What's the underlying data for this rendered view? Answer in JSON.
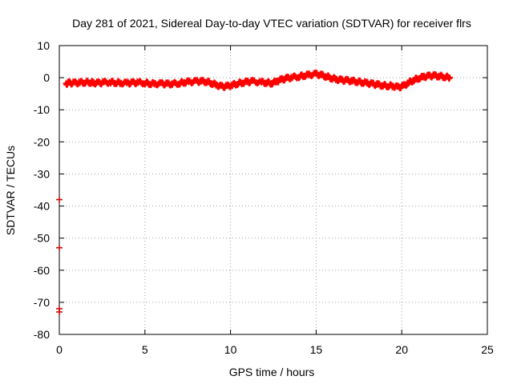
{
  "chart_data": {
    "type": "scatter",
    "title": "Day 281 of 2021, Sidereal Day-to-day VTEC variation (SDTVAR) for receiver flrs",
    "xlabel": "GPS time / hours",
    "ylabel": "SDTVAR / TECUs",
    "xlim": [
      0,
      25
    ],
    "ylim": [
      -80,
      10
    ],
    "xticks": [
      0,
      5,
      10,
      15,
      20,
      25
    ],
    "yticks": [
      10,
      0,
      -10,
      -20,
      -30,
      -40,
      -50,
      -60,
      -70,
      -80
    ],
    "grid": true,
    "marker": "plus",
    "colors": {
      "series": "#ff0000",
      "outliers": "#cc0000",
      "grid": "#a0a0a0",
      "frame": "#000000"
    },
    "series": [
      {
        "name": "SDTVAR",
        "points": [
          [
            0.4,
            -1.8
          ],
          [
            0.6,
            -1.6
          ],
          [
            0.9,
            -1.7
          ],
          [
            1.2,
            -1.5
          ],
          [
            1.5,
            -1.4
          ],
          [
            1.8,
            -1.4
          ],
          [
            2.0,
            -1.6
          ],
          [
            2.3,
            -1.7
          ],
          [
            2.6,
            -1.5
          ],
          [
            3.0,
            -1.4
          ],
          [
            3.3,
            -1.5
          ],
          [
            3.6,
            -1.6
          ],
          [
            4.0,
            -1.7
          ],
          [
            4.3,
            -1.6
          ],
          [
            4.6,
            -1.5
          ],
          [
            5.0,
            -1.6
          ],
          [
            5.3,
            -1.8
          ],
          [
            5.6,
            -1.9
          ],
          [
            6.0,
            -1.9
          ],
          [
            6.3,
            -2.0
          ],
          [
            6.6,
            -1.9
          ],
          [
            7.0,
            -1.7
          ],
          [
            7.3,
            -1.4
          ],
          [
            7.6,
            -1.3
          ],
          [
            8.0,
            -1.2
          ],
          [
            8.3,
            -1.1
          ],
          [
            8.6,
            -1.2
          ],
          [
            8.9,
            -1.7
          ],
          [
            9.2,
            -2.3
          ],
          [
            9.5,
            -2.8
          ],
          [
            9.8,
            -2.7
          ],
          [
            10.1,
            -2.3
          ],
          [
            10.4,
            -1.8
          ],
          [
            10.7,
            -1.5
          ],
          [
            11.0,
            -1.3
          ],
          [
            11.3,
            -1.2
          ],
          [
            11.8,
            -1.4
          ],
          [
            12.1,
            -1.5
          ],
          [
            12.4,
            -1.7
          ],
          [
            12.7,
            -1.1
          ],
          [
            13.0,
            -0.6
          ],
          [
            13.3,
            -0.2
          ],
          [
            13.6,
            0.1
          ],
          [
            14.0,
            0.4
          ],
          [
            14.3,
            0.7
          ],
          [
            14.6,
            0.9
          ],
          [
            15.0,
            1.1
          ],
          [
            15.3,
            0.8
          ],
          [
            15.6,
            0.4
          ],
          [
            15.9,
            -0.1
          ],
          [
            16.2,
            -0.5
          ],
          [
            16.5,
            -0.8
          ],
          [
            16.8,
            -0.9
          ],
          [
            17.1,
            -1.0
          ],
          [
            17.4,
            -1.2
          ],
          [
            17.7,
            -1.4
          ],
          [
            18.0,
            -1.7
          ],
          [
            18.3,
            -2.0
          ],
          [
            18.6,
            -2.2
          ],
          [
            18.9,
            -2.4
          ],
          [
            19.2,
            -2.5
          ],
          [
            19.5,
            -2.6
          ],
          [
            19.8,
            -3.0
          ],
          [
            20.1,
            -2.6
          ],
          [
            20.4,
            -1.6
          ],
          [
            20.7,
            -0.7
          ],
          [
            21.0,
            -0.1
          ],
          [
            21.3,
            0.3
          ],
          [
            21.6,
            0.5
          ],
          [
            21.9,
            0.6
          ],
          [
            22.2,
            0.5
          ],
          [
            22.5,
            0.3
          ],
          [
            22.8,
            0.0
          ]
        ]
      },
      {
        "name": "Outliers",
        "points": [
          [
            0.0,
            -38.0
          ],
          [
            0.0,
            -53.0
          ],
          [
            0.0,
            -72.0
          ],
          [
            0.0,
            -73.0
          ]
        ]
      }
    ]
  }
}
